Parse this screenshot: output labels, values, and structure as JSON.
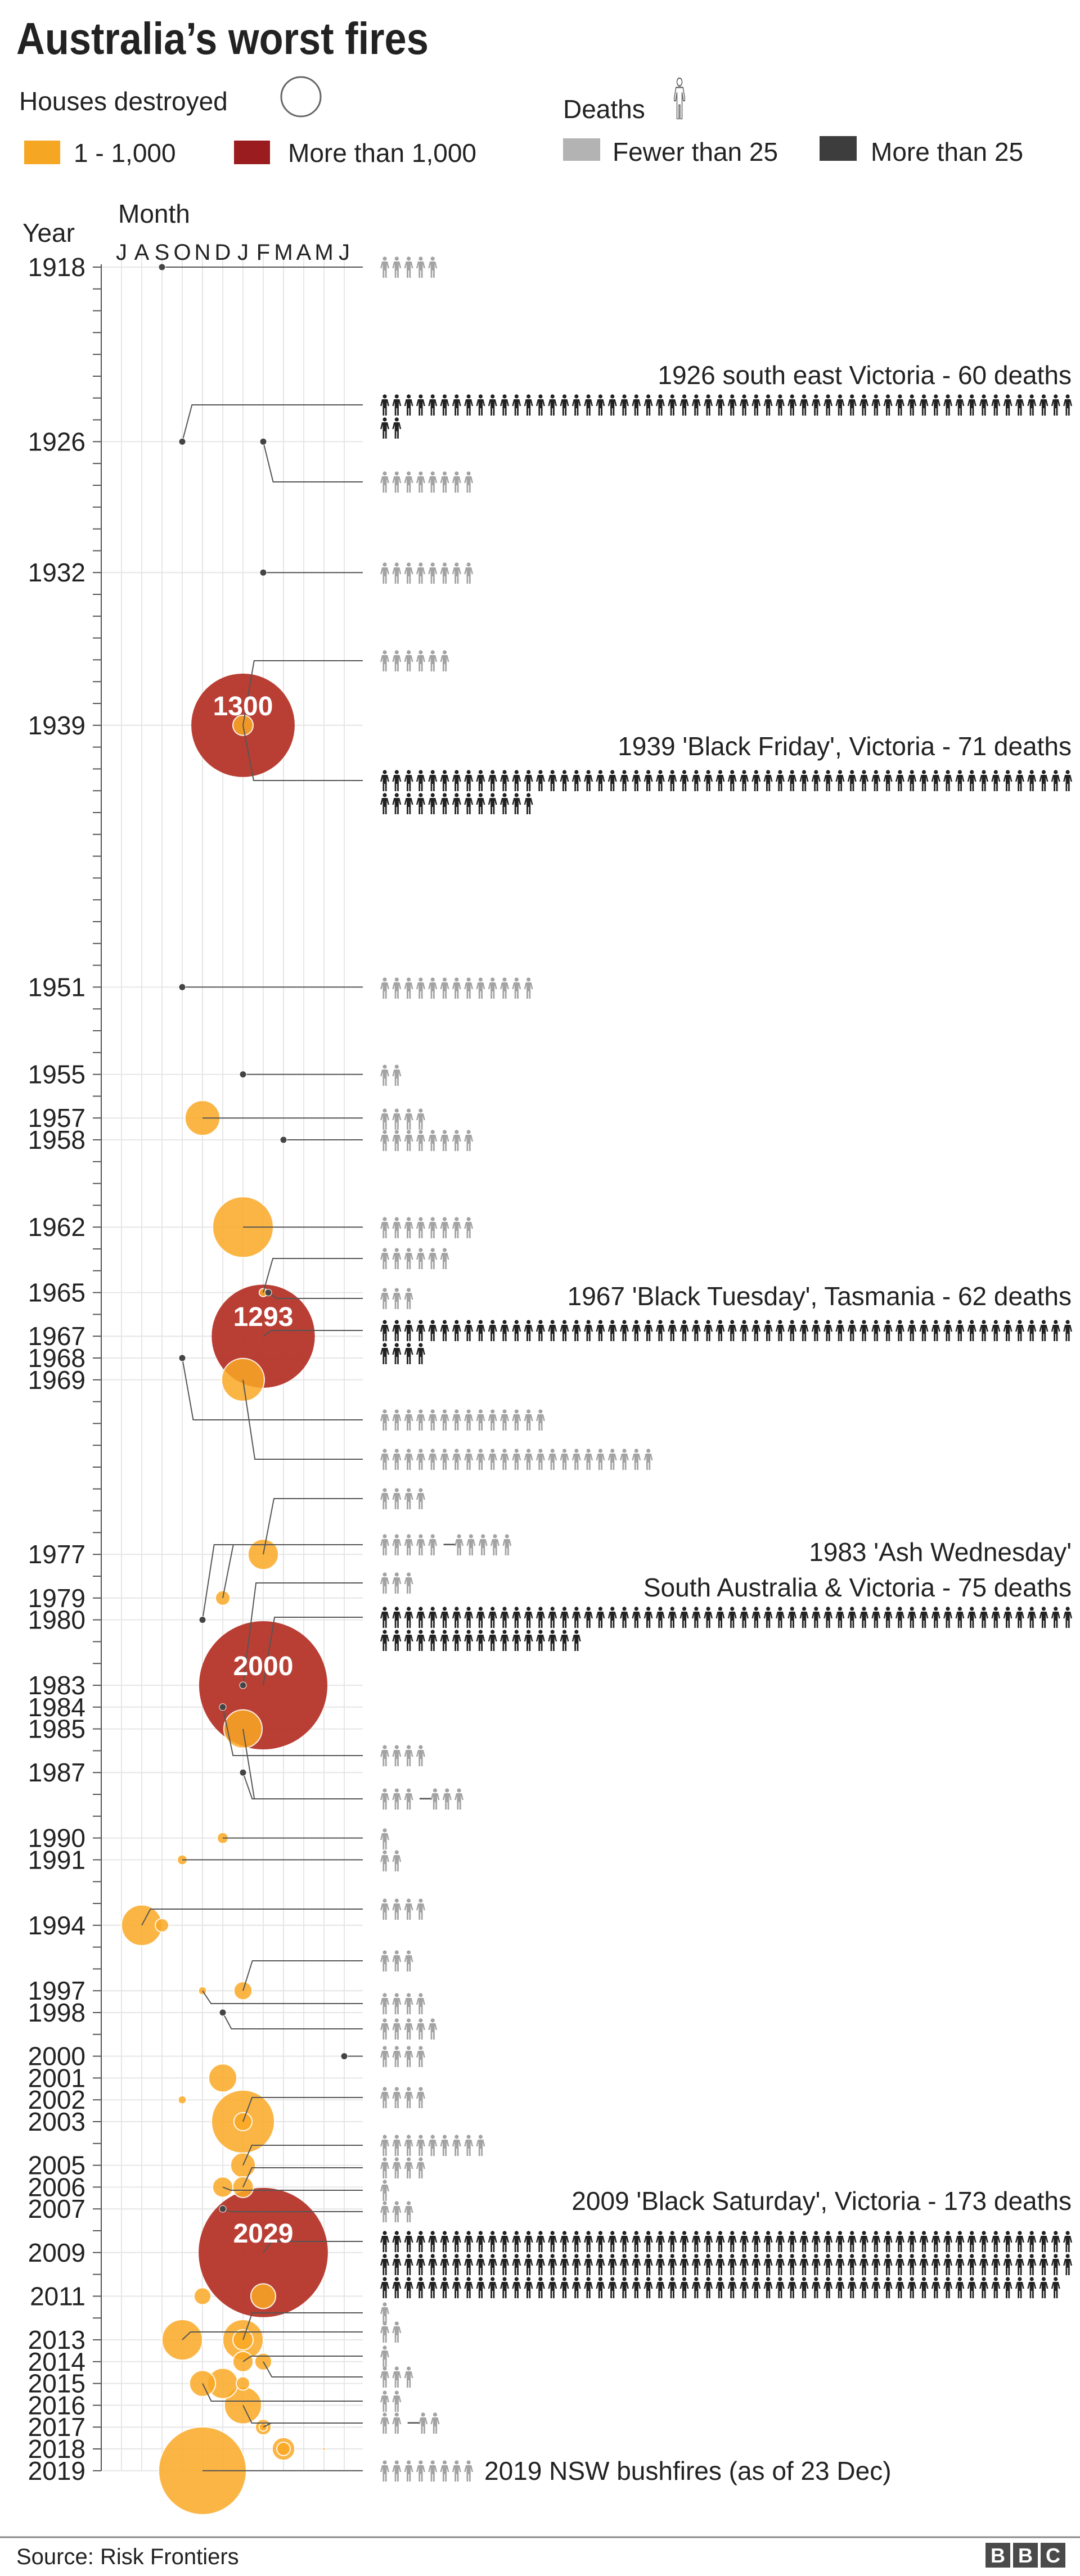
{
  "title": "Australia’s worst fires",
  "legend": {
    "houses_label": "Houses destroyed",
    "deaths_label": "Deaths",
    "houses_small": "1 - 1,000",
    "houses_large": "More than 1,000",
    "deaths_few": "Fewer than 25",
    "deaths_many": "More than 25"
  },
  "colors": {
    "houses_small": "#f9a825",
    "houses_large": "#b5352a",
    "deaths_few": "#a3a3a3",
    "deaths_many": "#222222",
    "legend_red": "#9b1c1f",
    "legend_grey": "#b3b3b3",
    "legend_dark": "#3d3d3d"
  },
  "source": "Source: Risk Frontiers",
  "logo": "BBC",
  "chart_data": {
    "type": "scatter",
    "xlabel": "Month",
    "ylabel": "Year",
    "x_ticks": [
      "J",
      "A",
      "S",
      "O",
      "N",
      "D",
      "J",
      "F",
      "M",
      "A",
      "M",
      "J"
    ],
    "y_range": [
      1918,
      2019
    ],
    "y_ticks": [
      1918,
      1926,
      1932,
      1939,
      1951,
      1955,
      1957,
      1958,
      1962,
      1965,
      1967,
      1968,
      1969,
      1977,
      1979,
      1980,
      1983,
      1984,
      1985,
      1987,
      1990,
      1991,
      1994,
      1997,
      1998,
      2000,
      2001,
      2002,
      2003,
      2005,
      2006,
      2007,
      2009,
      2011,
      2013,
      2014,
      2015,
      2016,
      2017,
      2018,
      2019
    ],
    "grid": true,
    "size_encoding": "houses destroyed",
    "icon_encoding": "deaths (one figure per death)",
    "row_separator": "–",
    "fires": [
      {
        "year": 1918,
        "month": "Sep",
        "houses": 0,
        "deaths": 5
      },
      {
        "year": 1926,
        "month": "Oct",
        "houses": 0,
        "deaths": 60
      },
      {
        "year": 1926,
        "month": "Feb",
        "houses": 0,
        "deaths": 8
      },
      {
        "year": 1932,
        "month": "Feb",
        "houses": 0,
        "deaths": 8
      },
      {
        "year": 1939,
        "month": "Jan",
        "houses": 50,
        "deaths": 6
      },
      {
        "year": 1939,
        "month": "Jan",
        "houses": 1300,
        "deaths": 71
      },
      {
        "year": 1951,
        "month": "Oct",
        "houses": 0,
        "deaths": 13
      },
      {
        "year": 1955,
        "month": "Jan",
        "houses": 0,
        "deaths": 2
      },
      {
        "year": 1957,
        "month": "Nov",
        "houses": 148,
        "deaths": 4
      },
      {
        "year": 1958,
        "month": "Mar",
        "houses": 0,
        "deaths": 8
      },
      {
        "year": 1962,
        "month": "Jan",
        "houses": 448,
        "deaths": 8
      },
      {
        "year": 1965,
        "month": "Feb",
        "houses": 8,
        "deaths": 6
      },
      {
        "year": 1965,
        "month": "Feb",
        "houses": 0,
        "deaths": 3
      },
      {
        "year": 1967,
        "month": "Feb",
        "houses": 1293,
        "deaths": 62
      },
      {
        "year": 1968,
        "month": "Oct",
        "houses": 0,
        "deaths": 14
      },
      {
        "year": 1969,
        "month": "Jan",
        "houses": 222,
        "deaths": 23
      },
      {
        "year": 1977,
        "month": "Feb",
        "houses": 112,
        "deaths": 4
      },
      {
        "year": 1979,
        "month": "Dec",
        "houses": 26,
        "deaths": 5
      },
      {
        "year": 1980,
        "month": "Nov",
        "houses": 0,
        "deaths": 5
      },
      {
        "year": 1983,
        "month": "Jan",
        "houses": 0,
        "deaths": 3
      },
      {
        "year": 1983,
        "month": "Feb",
        "houses": 2000,
        "deaths": 75
      },
      {
        "year": 1984,
        "month": "Dec",
        "houses": 0,
        "deaths": 4
      },
      {
        "year": 1985,
        "month": "Jan",
        "houses": 178,
        "deaths": 3
      },
      {
        "year": 1987,
        "month": "Jan",
        "houses": 0,
        "deaths": 3
      },
      {
        "year": 1990,
        "month": "Dec",
        "houses": 15,
        "deaths": 1
      },
      {
        "year": 1991,
        "month": "Oct",
        "houses": 12,
        "deaths": 2
      },
      {
        "year": 1994,
        "month": "Aug",
        "houses": 200,
        "deaths": 4
      },
      {
        "year": 1994,
        "month": "Sep",
        "houses": 22,
        "deaths": 0
      },
      {
        "year": 1997,
        "month": "Jan",
        "houses": 40,
        "deaths": 3
      },
      {
        "year": 1997,
        "month": "Nov",
        "houses": 8,
        "deaths": 4
      },
      {
        "year": 1998,
        "month": "Dec",
        "houses": 0,
        "deaths": 5
      },
      {
        "year": 2000,
        "month": "Jun",
        "houses": 0,
        "deaths": 4
      },
      {
        "year": 2001,
        "month": "Dec",
        "houses": 96,
        "deaths": 0
      },
      {
        "year": 2002,
        "month": "Oct",
        "houses": 8,
        "deaths": 0
      },
      {
        "year": 2003,
        "month": "Jan",
        "houses": 482,
        "deaths": 0
      },
      {
        "year": 2003,
        "month": "Jan",
        "houses": 40,
        "deaths": 4
      },
      {
        "year": 2005,
        "month": "Jan",
        "houses": 75,
        "deaths": 9
      },
      {
        "year": 2006,
        "month": "Jan",
        "houses": 53,
        "deaths": 4
      },
      {
        "year": 2006,
        "month": "Dec",
        "houses": 50,
        "deaths": 1
      },
      {
        "year": 2007,
        "month": "Dec",
        "houses": 0,
        "deaths": 3
      },
      {
        "year": 2009,
        "month": "Feb",
        "houses": 2029,
        "deaths": 173
      },
      {
        "year": 2011,
        "month": "Feb",
        "houses": 75,
        "deaths": 0
      },
      {
        "year": 2011,
        "month": "Nov",
        "houses": 35,
        "deaths": 0
      },
      {
        "year": 2013,
        "month": "Jan",
        "houses": 200,
        "deaths": 1
      },
      {
        "year": 2013,
        "month": "Jan",
        "houses": 50,
        "deaths": 0
      },
      {
        "year": 2013,
        "month": "Oct",
        "houses": 200,
        "deaths": 2
      },
      {
        "year": 2014,
        "month": "Jan",
        "houses": 50,
        "deaths": 1
      },
      {
        "year": 2014,
        "month": "Feb",
        "houses": 35,
        "deaths": 3
      },
      {
        "year": 2015,
        "month": "Nov",
        "houses": 82,
        "deaths": 2
      },
      {
        "year": 2015,
        "month": "Dec",
        "houses": 112,
        "deaths": 0
      },
      {
        "year": 2015,
        "month": "Jan",
        "houses": 22,
        "deaths": 0
      },
      {
        "year": 2016,
        "month": "Jan",
        "houses": 168,
        "deaths": 2
      },
      {
        "year": 2017,
        "month": "Feb",
        "houses": 30,
        "deaths": 2
      },
      {
        "year": 2017,
        "month": "Feb",
        "houses": 8,
        "deaths": 0
      },
      {
        "year": 2018,
        "month": "Mar",
        "houses": 62,
        "deaths": 0
      },
      {
        "year": 2018,
        "month": "Mar",
        "houses": 22,
        "deaths": 0
      },
      {
        "year": 2018,
        "month": "May",
        "houses": 1,
        "deaths": 0
      },
      {
        "year": 2019,
        "month": "Nov",
        "houses": 935,
        "deaths": 8
      }
    ],
    "annotations": [
      {
        "text": "1926 south east Victoria - 60 deaths"
      },
      {
        "text": "1939 'Black Friday', Victoria - 71 deaths"
      },
      {
        "text": "1967 'Black Tuesday', Tasmania - 62 deaths"
      },
      {
        "text": "1983 'Ash Wednesday'"
      },
      {
        "text": "South Australia & Victoria - 75 deaths"
      },
      {
        "text": "2009 'Black Saturday', Victoria - 173 deaths"
      },
      {
        "text": "2019 NSW bushfires (as of 23 Dec)"
      }
    ]
  }
}
